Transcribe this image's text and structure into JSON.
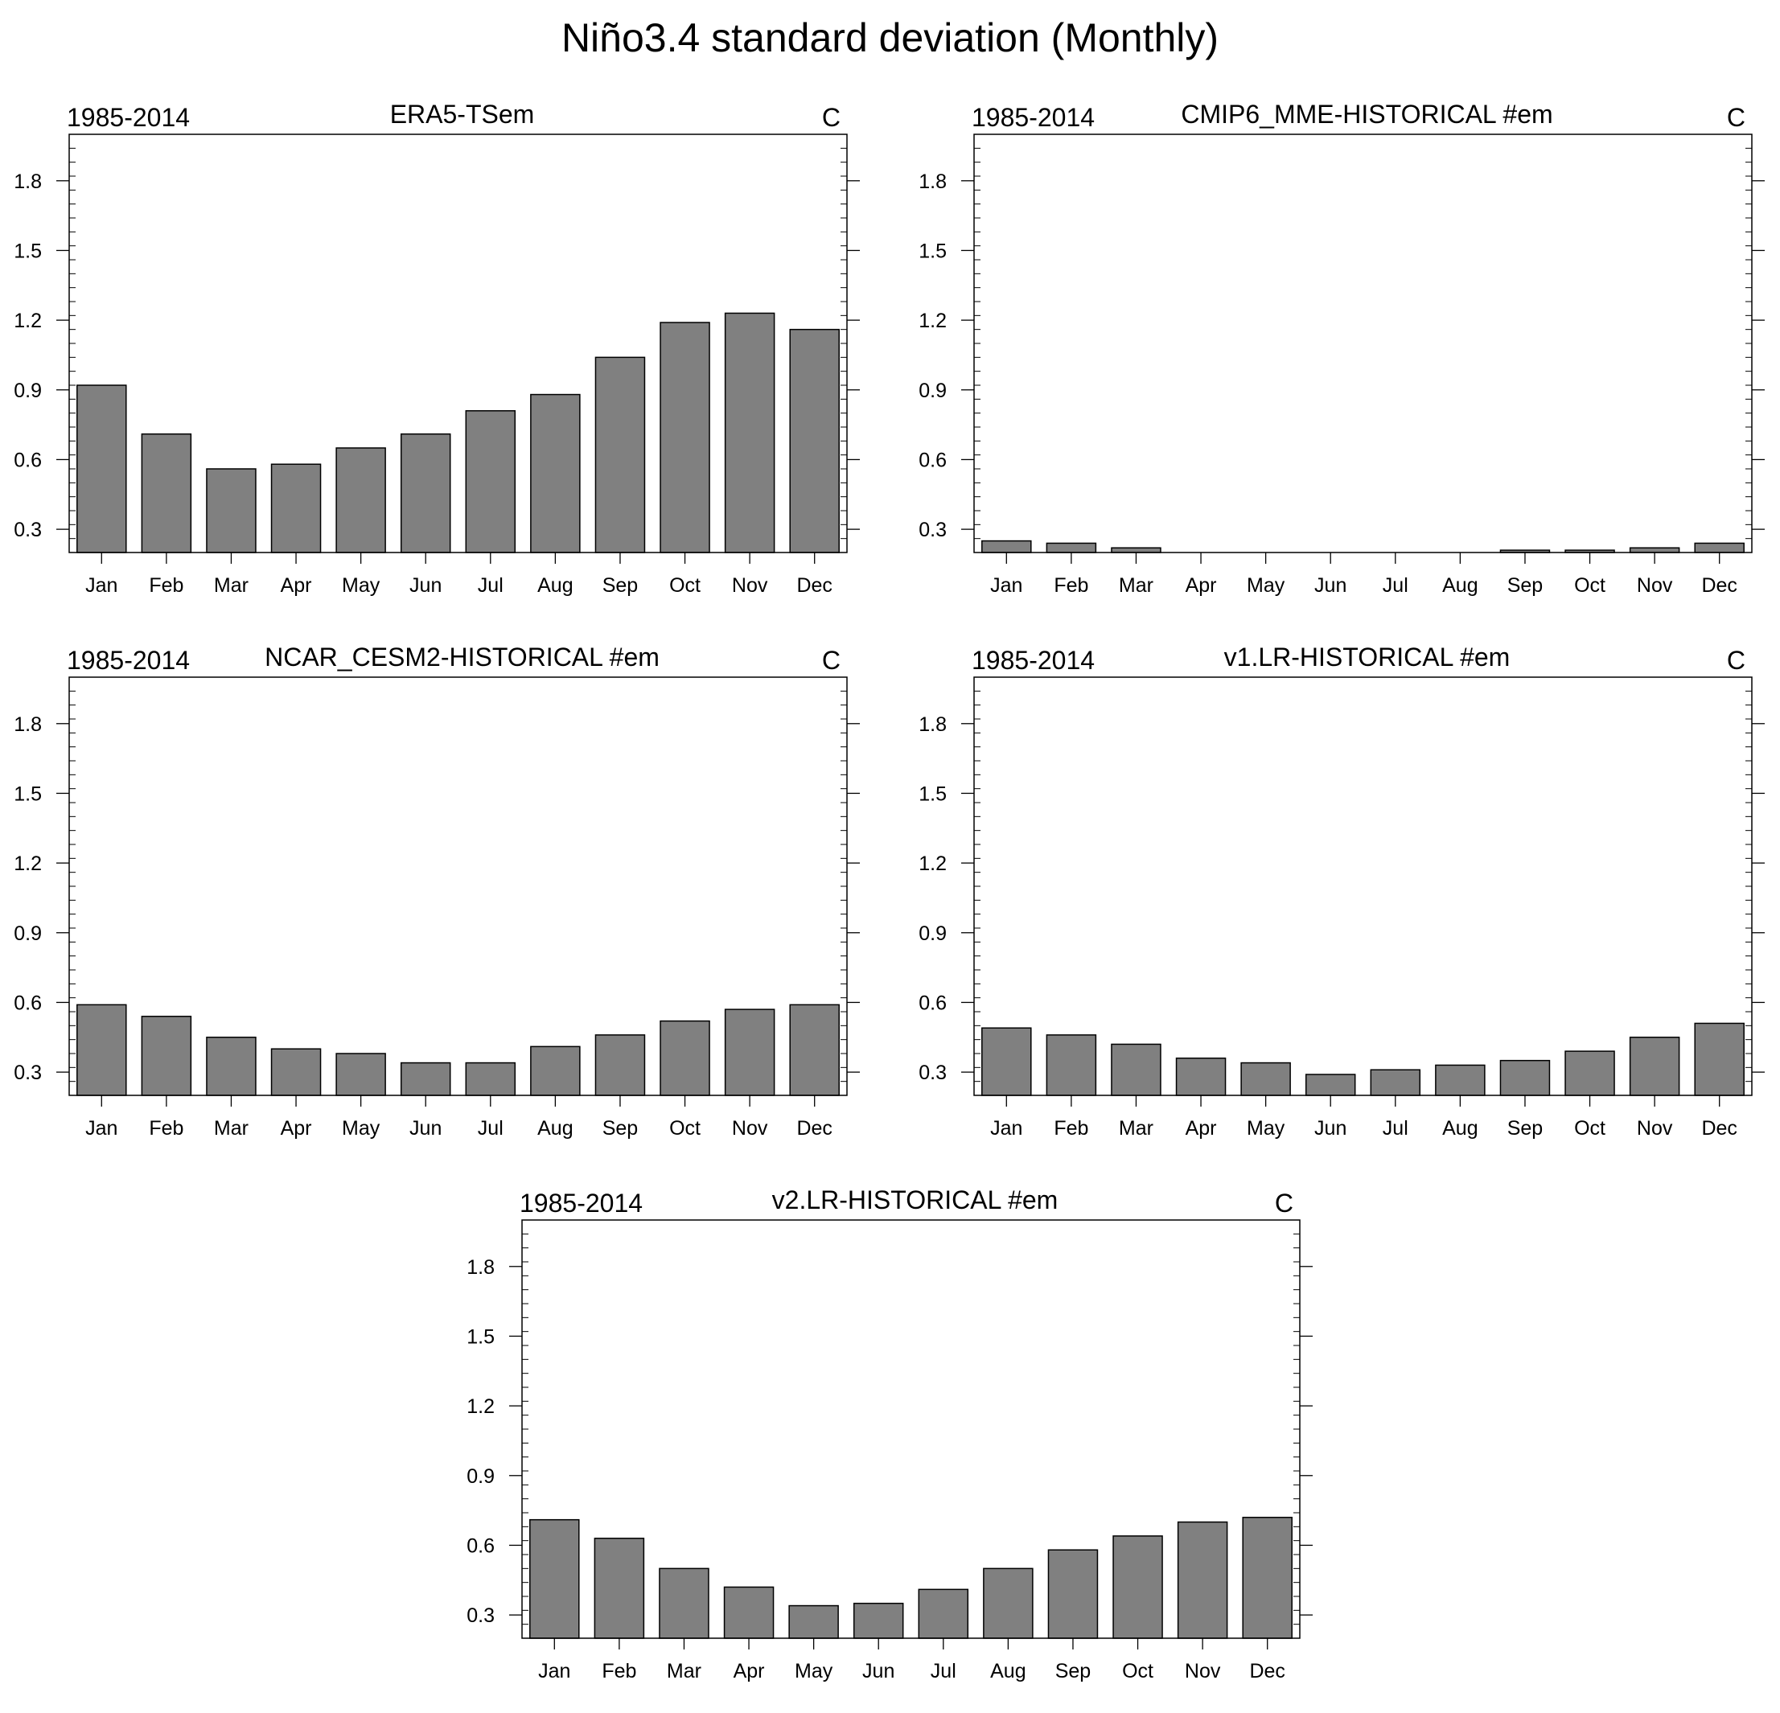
{
  "figure": {
    "title": "Niño3.4 standard deviation (Monthly)"
  },
  "style": {
    "bar_fill": "#808080",
    "bar_stroke": "#000000",
    "axis_color": "#000000",
    "background": "#ffffff"
  },
  "chart_data": [
    {
      "type": "bar",
      "title": "ERA5-TSem",
      "left_label": "1985-2014",
      "units": "C",
      "categories": [
        "Jan",
        "Feb",
        "Mar",
        "Apr",
        "May",
        "Jun",
        "Jul",
        "Aug",
        "Sep",
        "Oct",
        "Nov",
        "Dec"
      ],
      "values": [
        0.92,
        0.71,
        0.56,
        0.58,
        0.65,
        0.71,
        0.81,
        0.88,
        1.04,
        1.19,
        1.23,
        1.16
      ],
      "ylim": [
        0.2,
        2.0
      ],
      "yticks": [
        "0.3",
        "0.6",
        "0.9",
        "1.2",
        "1.5",
        "1.8"
      ],
      "xlabel": "",
      "ylabel": ""
    },
    {
      "type": "bar",
      "title": "CMIP6_MME-HISTORICAL  #em",
      "left_label": "1985-2014",
      "units": "C",
      "categories": [
        "Jan",
        "Feb",
        "Mar",
        "Apr",
        "May",
        "Jun",
        "Jul",
        "Aug",
        "Sep",
        "Oct",
        "Nov",
        "Dec"
      ],
      "values": [
        0.25,
        0.24,
        0.22,
        0.19,
        0.18,
        0.18,
        0.18,
        0.19,
        0.21,
        0.21,
        0.22,
        0.24
      ],
      "ylim": [
        0.2,
        2.0
      ],
      "yticks": [
        "0.3",
        "0.6",
        "0.9",
        "1.2",
        "1.5",
        "1.8"
      ],
      "xlabel": "",
      "ylabel": ""
    },
    {
      "type": "bar",
      "title": "NCAR_CESM2-HISTORICAL  #em",
      "left_label": "1985-2014",
      "units": "C",
      "categories": [
        "Jan",
        "Feb",
        "Mar",
        "Apr",
        "May",
        "Jun",
        "Jul",
        "Aug",
        "Sep",
        "Oct",
        "Nov",
        "Dec"
      ],
      "values": [
        0.59,
        0.54,
        0.45,
        0.4,
        0.38,
        0.34,
        0.34,
        0.41,
        0.46,
        0.52,
        0.57,
        0.59
      ],
      "ylim": [
        0.2,
        2.0
      ],
      "yticks": [
        "0.3",
        "0.6",
        "0.9",
        "1.2",
        "1.5",
        "1.8"
      ],
      "xlabel": "",
      "ylabel": ""
    },
    {
      "type": "bar",
      "title": "v1.LR-HISTORICAL  #em",
      "left_label": "1985-2014",
      "units": "C",
      "categories": [
        "Jan",
        "Feb",
        "Mar",
        "Apr",
        "May",
        "Jun",
        "Jul",
        "Aug",
        "Sep",
        "Oct",
        "Nov",
        "Dec"
      ],
      "values": [
        0.49,
        0.46,
        0.42,
        0.36,
        0.34,
        0.29,
        0.31,
        0.33,
        0.35,
        0.39,
        0.45,
        0.51
      ],
      "ylim": [
        0.2,
        2.0
      ],
      "yticks": [
        "0.3",
        "0.6",
        "0.9",
        "1.2",
        "1.5",
        "1.8"
      ],
      "xlabel": "",
      "ylabel": ""
    },
    {
      "type": "bar",
      "title": "v2.LR-HISTORICAL  #em",
      "left_label": "1985-2014",
      "units": "C",
      "categories": [
        "Jan",
        "Feb",
        "Mar",
        "Apr",
        "May",
        "Jun",
        "Jul",
        "Aug",
        "Sep",
        "Oct",
        "Nov",
        "Dec"
      ],
      "values": [
        0.71,
        0.63,
        0.5,
        0.42,
        0.34,
        0.35,
        0.41,
        0.5,
        0.58,
        0.64,
        0.7,
        0.72
      ],
      "ylim": [
        0.2,
        2.0
      ],
      "yticks": [
        "0.3",
        "0.6",
        "0.9",
        "1.2",
        "1.5",
        "1.8"
      ],
      "xlabel": "",
      "ylabel": ""
    }
  ]
}
